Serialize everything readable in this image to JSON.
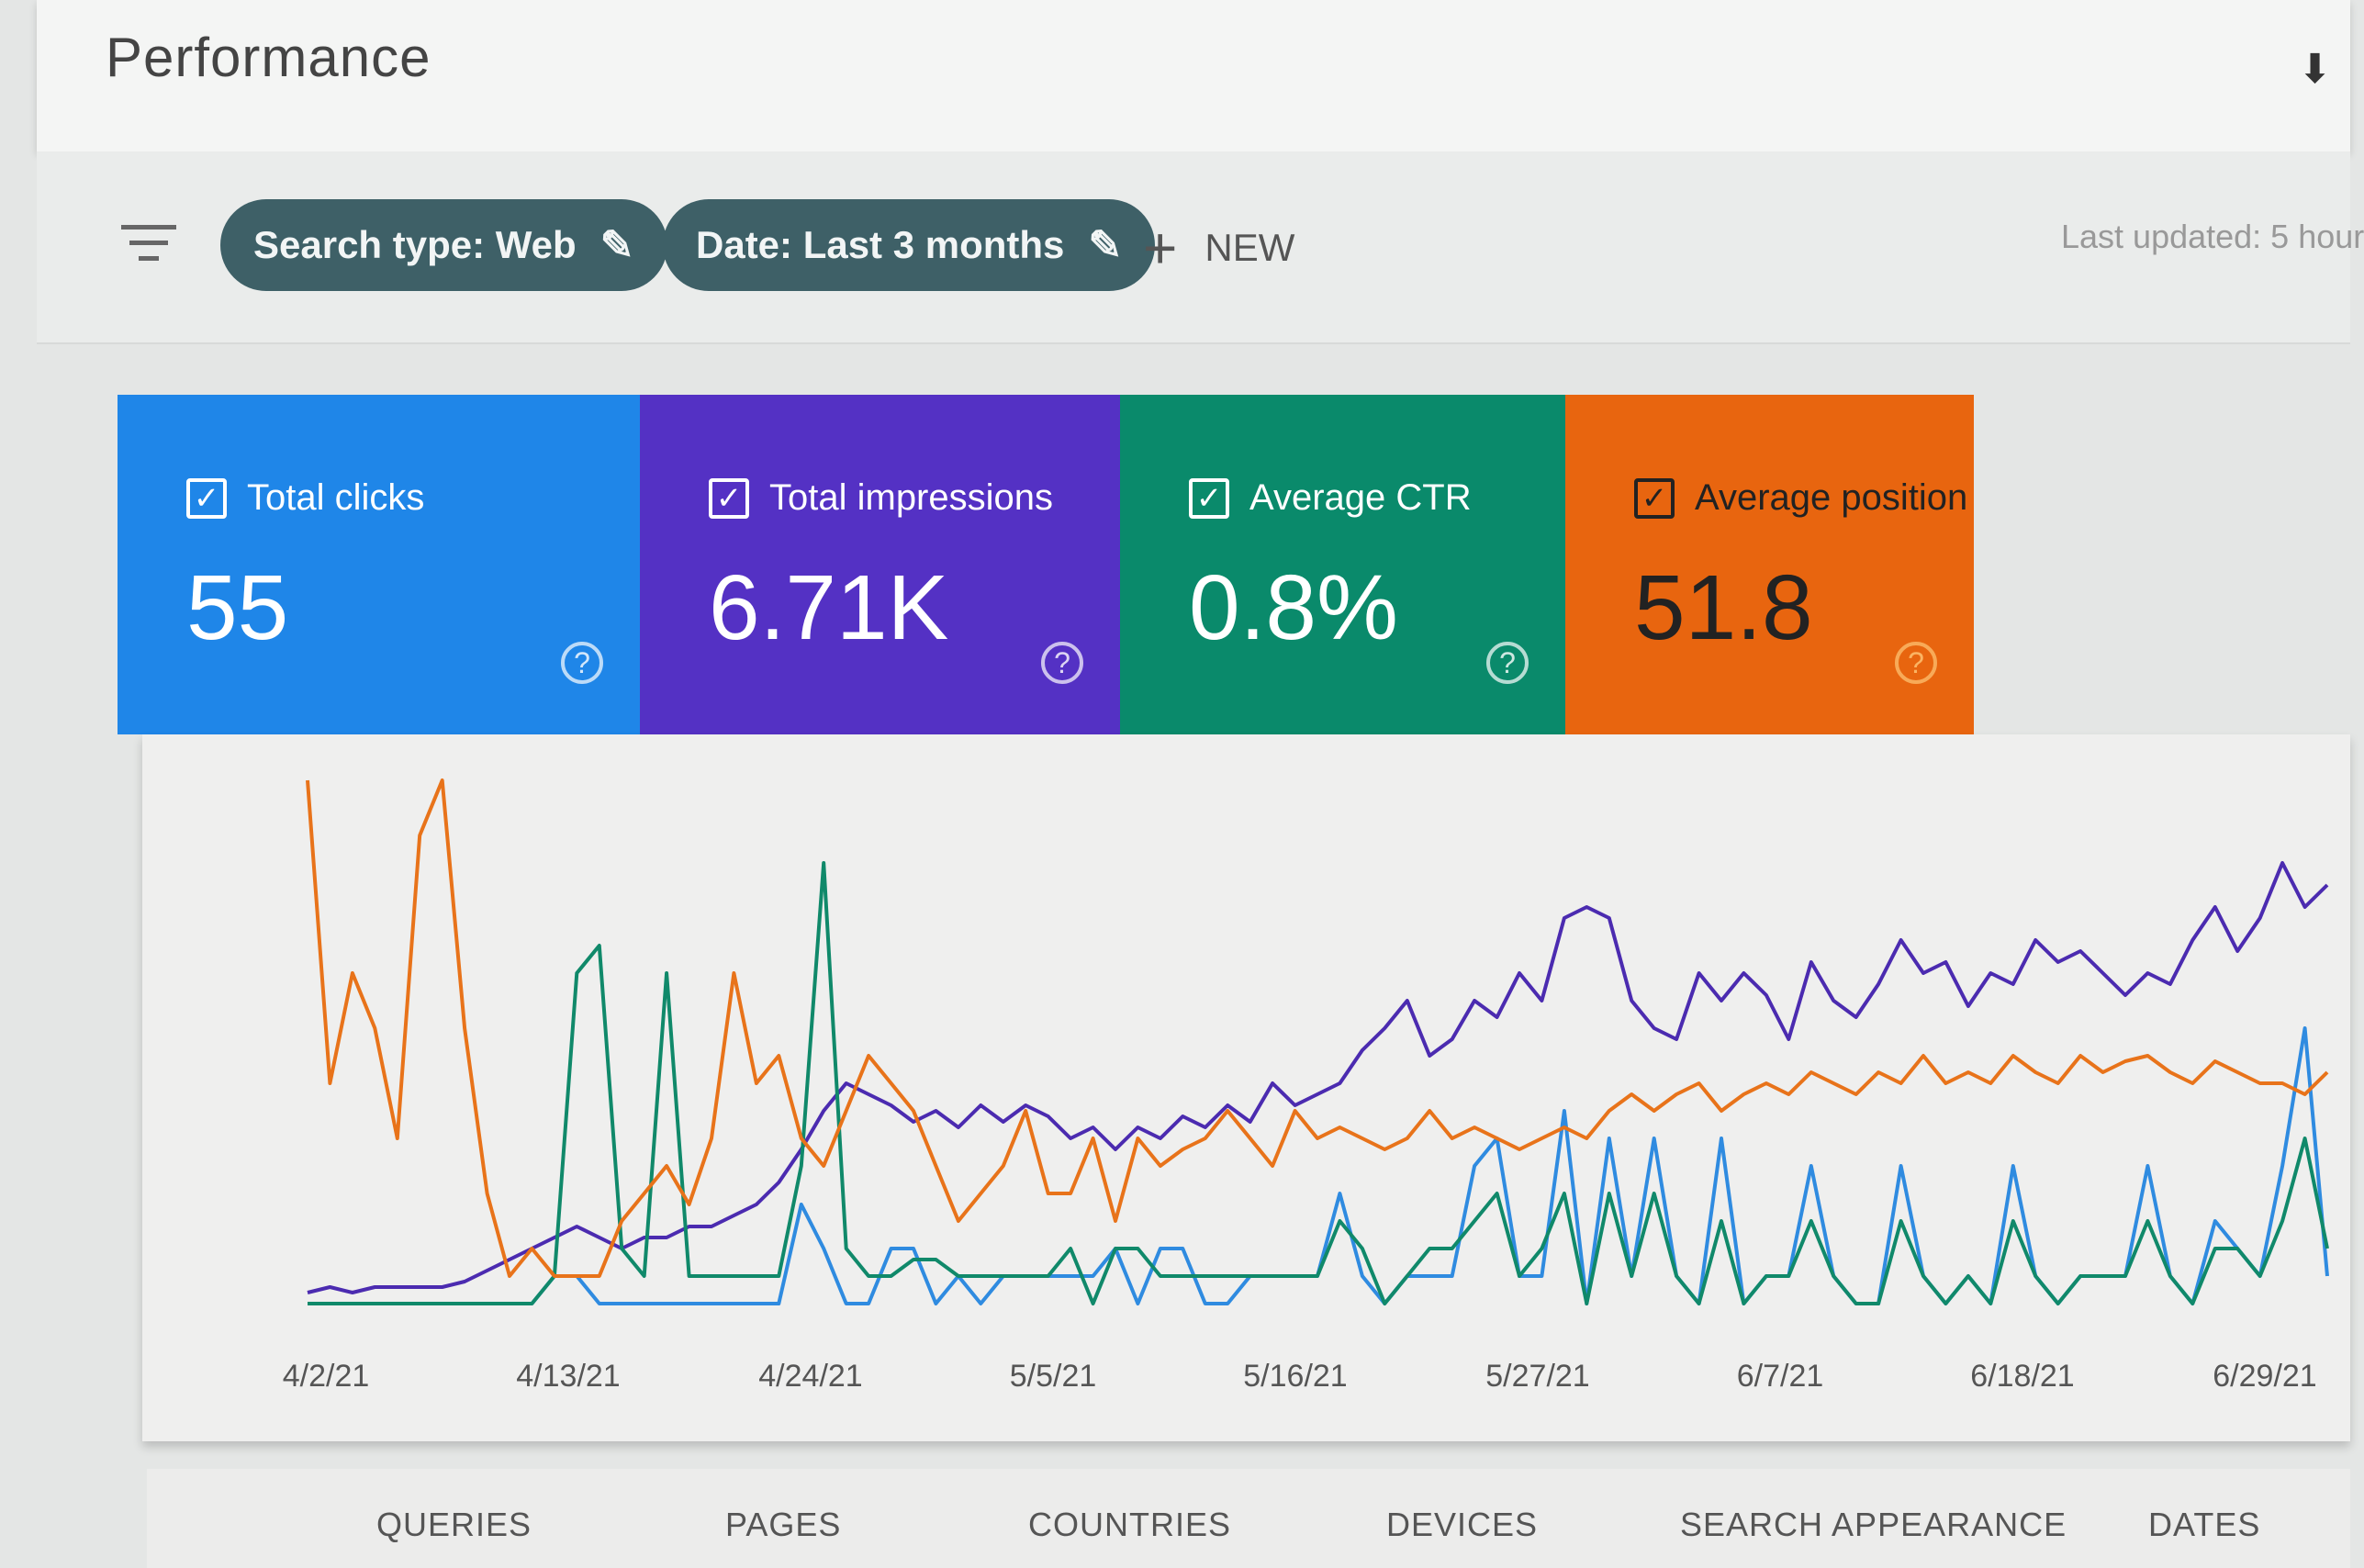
{
  "header": {
    "title": "Performance",
    "download_icon": "download-icon"
  },
  "filters": {
    "filter_icon": "filter-icon",
    "chips": [
      {
        "label": "Search type: Web",
        "icon": "pencil-icon"
      },
      {
        "label": "Date: Last 3 months",
        "icon": "pencil-icon"
      }
    ],
    "new_label": "NEW",
    "last_updated": "Last updated: 5 hour"
  },
  "metrics": [
    {
      "label": "Total clicks",
      "value": "55",
      "color": "#1f86e8",
      "checked": true
    },
    {
      "label": "Total impressions",
      "value": "6.71K",
      "color": "#5431c4",
      "checked": true
    },
    {
      "label": "Average CTR",
      "value": "0.8%",
      "color": "#0a8a6b",
      "checked": true
    },
    {
      "label": "Average position",
      "value": "51.8",
      "color": "#e8650f",
      "checked": true
    }
  ],
  "chart_data": {
    "type": "line",
    "x_ticks": [
      "4/2/21",
      "4/13/21",
      "4/24/21",
      "5/5/21",
      "5/16/21",
      "5/27/21",
      "6/7/21",
      "6/18/21",
      "6/29/21"
    ],
    "grid": false,
    "series": [
      {
        "name": "Total clicks",
        "color": "#2f8be0",
        "values": [
          0,
          0,
          0,
          0,
          0,
          0,
          0,
          0,
          0,
          0,
          0,
          5,
          5,
          0,
          0,
          0,
          0,
          0,
          0,
          0,
          0,
          0,
          18,
          10,
          0,
          0,
          10,
          10,
          0,
          5,
          0,
          5,
          5,
          5,
          5,
          5,
          10,
          0,
          10,
          10,
          0,
          0,
          5,
          5,
          5,
          5,
          20,
          5,
          0,
          5,
          5,
          5,
          25,
          30,
          5,
          5,
          35,
          0,
          30,
          5,
          30,
          5,
          0,
          30,
          0,
          5,
          5,
          25,
          5,
          0,
          0,
          25,
          5,
          0,
          5,
          0,
          25,
          5,
          0,
          5,
          5,
          5,
          25,
          5,
          0,
          15,
          10,
          5,
          25,
          50,
          5
        ]
      },
      {
        "name": "Total impressions",
        "color": "#4b2bb0",
        "values": [
          2,
          3,
          2,
          3,
          3,
          3,
          3,
          4,
          6,
          8,
          10,
          12,
          14,
          12,
          10,
          12,
          12,
          14,
          14,
          16,
          18,
          22,
          28,
          35,
          40,
          38,
          36,
          33,
          35,
          32,
          36,
          33,
          36,
          34,
          30,
          32,
          28,
          32,
          30,
          34,
          32,
          36,
          33,
          40,
          36,
          38,
          40,
          46,
          50,
          55,
          45,
          48,
          55,
          52,
          60,
          55,
          70,
          72,
          70,
          55,
          50,
          48,
          60,
          55,
          60,
          56,
          48,
          62,
          55,
          52,
          58,
          66,
          60,
          62,
          54,
          60,
          58,
          66,
          62,
          64,
          60,
          56,
          60,
          58,
          66,
          72,
          64,
          70,
          80,
          72,
          76
        ]
      },
      {
        "name": "Average CTR",
        "color": "#10896a",
        "values": [
          0,
          0,
          0,
          0,
          0,
          0,
          0,
          0,
          0,
          0,
          0,
          5,
          60,
          65,
          10,
          5,
          60,
          5,
          5,
          5,
          5,
          5,
          25,
          80,
          10,
          5,
          5,
          8,
          8,
          5,
          5,
          5,
          5,
          5,
          10,
          0,
          10,
          10,
          5,
          5,
          5,
          5,
          5,
          5,
          5,
          5,
          15,
          10,
          0,
          5,
          10,
          10,
          15,
          20,
          5,
          10,
          20,
          0,
          20,
          5,
          20,
          5,
          0,
          15,
          0,
          5,
          5,
          15,
          5,
          0,
          0,
          15,
          5,
          0,
          5,
          0,
          15,
          5,
          0,
          5,
          5,
          5,
          15,
          5,
          0,
          10,
          10,
          5,
          15,
          30,
          10
        ]
      },
      {
        "name": "Average position",
        "color": "#e8731a",
        "values": [
          95,
          40,
          60,
          50,
          30,
          85,
          95,
          50,
          20,
          5,
          10,
          5,
          5,
          5,
          15,
          20,
          25,
          18,
          30,
          60,
          40,
          45,
          30,
          25,
          35,
          45,
          40,
          35,
          25,
          15,
          20,
          25,
          35,
          20,
          20,
          30,
          15,
          30,
          25,
          28,
          30,
          35,
          30,
          25,
          35,
          30,
          32,
          30,
          28,
          30,
          35,
          30,
          32,
          30,
          28,
          30,
          32,
          30,
          35,
          38,
          35,
          38,
          40,
          35,
          38,
          40,
          38,
          42,
          40,
          38,
          42,
          40,
          45,
          40,
          42,
          40,
          45,
          42,
          40,
          45,
          42,
          44,
          45,
          42,
          40,
          44,
          42,
          40,
          40,
          38,
          42
        ]
      }
    ]
  },
  "tabs": [
    "QUERIES",
    "PAGES",
    "COUNTRIES",
    "DEVICES",
    "SEARCH APPEARANCE",
    "DATES"
  ]
}
